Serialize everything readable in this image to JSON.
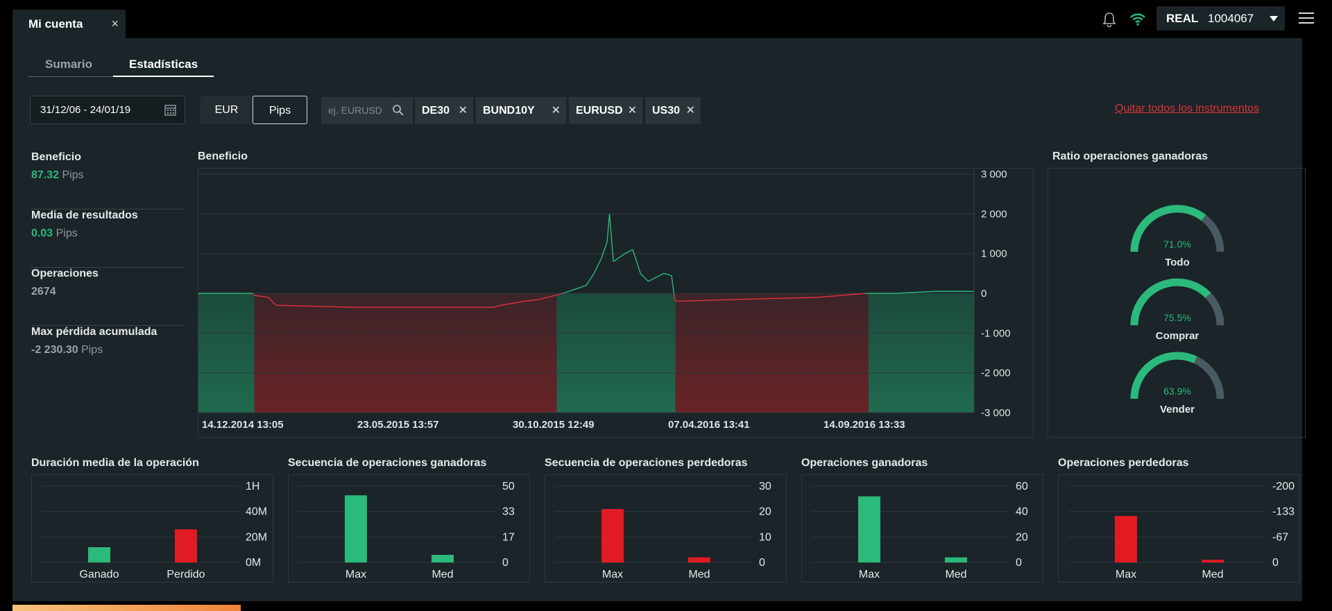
{
  "window": {
    "tab_label": "Mi cuenta",
    "close": "×"
  },
  "topbar": {
    "account_mode": "REAL",
    "account_number": "1004067"
  },
  "subtabs": [
    "Sumario",
    "Estadísticas"
  ],
  "filters": {
    "date_range": "31/12/06 - 24/01/19",
    "currency_options": [
      "EUR",
      "Pips"
    ],
    "selected_unit": "Pips",
    "search_placeholder": "ej. EURUSD",
    "instruments": [
      "DE30",
      "BUND10Y",
      "EURUSD",
      "US30"
    ],
    "remove_all_label": "Quitar todos los instrumentos"
  },
  "stats": [
    {
      "label": "Beneficio",
      "value": "87.32",
      "unit": "Pips",
      "color": "#2bb97c"
    },
    {
      "label": "Media de resultados",
      "value": "0.03",
      "unit": "Pips",
      "color": "#2bb97c"
    },
    {
      "label": "Operaciones",
      "value": "2674",
      "unit": ""
    },
    {
      "label": "Max pérdida acumulada",
      "value": "-2 230.30",
      "unit": "Pips"
    }
  ],
  "chart_data": [
    {
      "type": "area",
      "title": "Beneficio",
      "y_ticks": [
        "3 000",
        "2 000",
        "1 000",
        "0",
        "-1 000",
        "-2 000",
        "-3 000"
      ],
      "ylim": [
        -3000,
        3000
      ],
      "x_ticks": [
        "14.12.2014 13:05",
        "23.05.2015 13:57",
        "30.10.2015 12:49",
        "07.04.2016 13:41",
        "14.09.2016 13:33"
      ],
      "x": [
        0,
        0.07,
        0.072,
        0.09,
        0.1,
        0.2,
        0.3,
        0.38,
        0.39,
        0.42,
        0.44,
        0.47,
        0.5,
        0.51,
        0.52,
        0.527,
        0.53,
        0.535,
        0.55,
        0.56,
        0.57,
        0.58,
        0.6,
        0.61,
        0.613,
        0.615,
        0.7,
        0.8,
        0.86,
        0.9,
        0.95,
        1.0
      ],
      "y": [
        0,
        0,
        -50,
        -100,
        -300,
        -350,
        -350,
        -350,
        -300,
        -200,
        -150,
        0,
        200,
        500,
        900,
        1300,
        2000,
        800,
        1000,
        1100,
        500,
        300,
        500,
        450,
        0,
        -200,
        -150,
        -100,
        0,
        0,
        50,
        50
      ],
      "positive_regions": [
        [
          0,
          0.072
        ],
        [
          0.462,
          0.615
        ],
        [
          0.864,
          1.0
        ]
      ],
      "colors": {
        "positive": "#2bb97c",
        "negative": "#e0323a"
      }
    },
    {
      "type": "bar",
      "title": "Duración media de la operación",
      "categories": [
        "Ganado",
        "Perdido"
      ],
      "values": [
        12,
        26
      ],
      "y_ticks": [
        "1H",
        "40M",
        "20M",
        "0M"
      ],
      "ylim": [
        0,
        60
      ],
      "colors": [
        "#2bb97c",
        "#e21b23"
      ]
    },
    {
      "type": "bar",
      "title": "Secuencia de operaciones ganadoras",
      "categories": [
        "Max",
        "Med"
      ],
      "values": [
        44,
        5
      ],
      "y_ticks": [
        "50",
        "33",
        "17",
        "0"
      ],
      "ylim": [
        0,
        50
      ],
      "colors": [
        "#2bb97c",
        "#2bb97c"
      ]
    },
    {
      "type": "bar",
      "title": "Secuencia de operaciones perdedoras",
      "categories": [
        "Max",
        "Med"
      ],
      "values": [
        21,
        2
      ],
      "y_ticks": [
        "30",
        "20",
        "10",
        "0"
      ],
      "ylim": [
        0,
        30
      ],
      "colors": [
        "#e21b23",
        "#e21b23"
      ]
    },
    {
      "type": "bar",
      "title": "Operaciones ganadoras",
      "categories": [
        "Max",
        "Med"
      ],
      "values": [
        52,
        4
      ],
      "y_ticks": [
        "60",
        "40",
        "20",
        "0"
      ],
      "ylim": [
        0,
        60
      ],
      "colors": [
        "#2bb97c",
        "#2bb97c"
      ]
    },
    {
      "type": "bar",
      "title": "Operaciones perdedoras",
      "categories": [
        "Max",
        "Med"
      ],
      "values": [
        -122,
        -7
      ],
      "y_ticks": [
        "-200",
        "-133",
        "-67",
        "0"
      ],
      "ylim": [
        0,
        -200
      ],
      "colors": [
        "#e21b23",
        "#e21b23"
      ]
    }
  ],
  "ratio": {
    "title": "Ratio operaciones ganadoras",
    "gauges": [
      {
        "label": "Todo",
        "value": 71.0,
        "text": "71.0%"
      },
      {
        "label": "Comprar",
        "value": 75.5,
        "text": "75.5%"
      },
      {
        "label": "Vender",
        "value": 63.9,
        "text": "63.9%"
      }
    ],
    "colors": {
      "fill": "#2bb97c",
      "track": "#4a5a62"
    }
  }
}
